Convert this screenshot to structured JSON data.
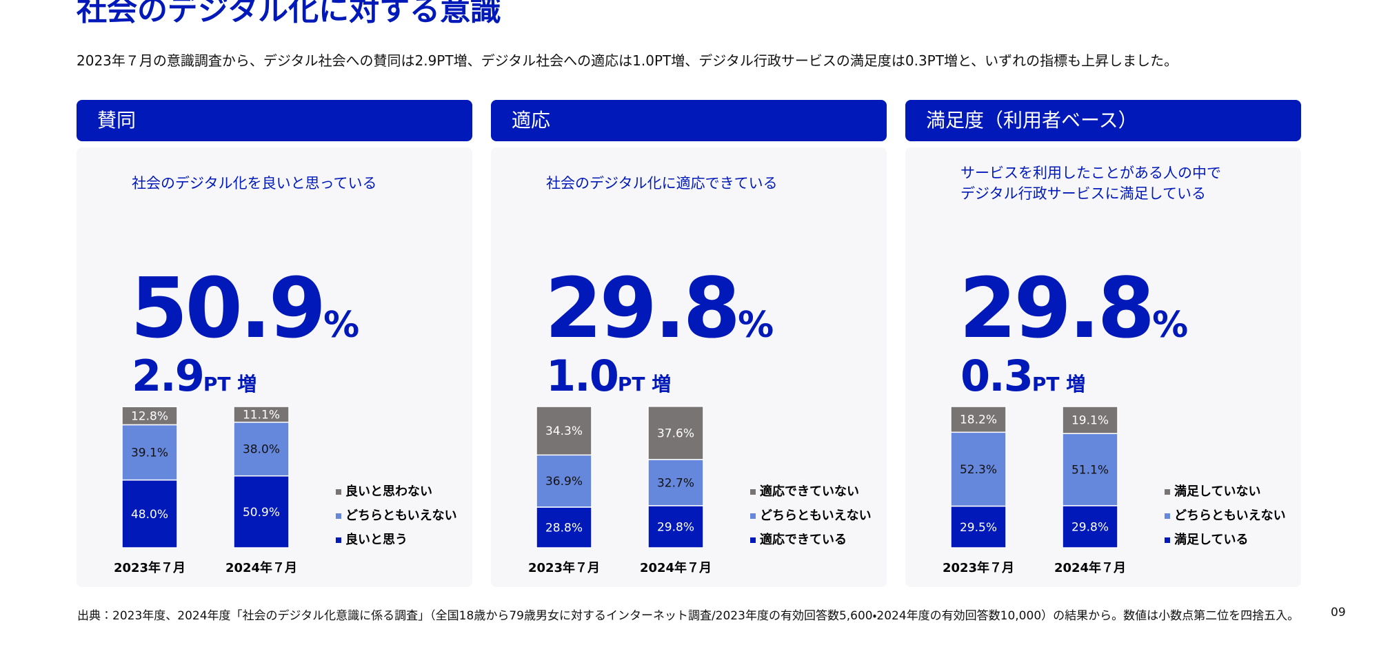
{
  "title": "社会のデジタル化に対する意識",
  "lead": "2023年７月の意識調査から、デジタル社会への賛同は2.9PT増、デジタル社会への適応は1.0PT増、デジタル行政サービスの満足度は0.3PT増と、いずれの指標も上昇しました。",
  "panels": [
    {
      "heading": "賛同",
      "description": [
        "社会のデジタル化を良いと思っている"
      ],
      "main_value": "50.9",
      "main_unit": "%",
      "change_value": "2.9",
      "change_unit": "PT 増"
    },
    {
      "heading": "適応",
      "description": [
        "社会のデジタル化に適応できている"
      ],
      "main_value": "29.8",
      "main_unit": "%",
      "change_value": "1.0",
      "change_unit": "PT 増"
    },
    {
      "heading": "満足度（利用者ベース）",
      "description": [
        "サービスを利用したことがある人の中で",
        "デジタル行政サービスに満足している"
      ],
      "main_value": "29.8",
      "main_unit": "%",
      "change_value": "0.3",
      "change_unit": "PT 増"
    }
  ],
  "chart_data": [
    {
      "type": "bar",
      "stacked": true,
      "categories": [
        "2023年７月",
        "2024年７月"
      ],
      "series": [
        {
          "name": "良いと思う",
          "color": "#0019b8",
          "values": [
            48.0,
            50.9
          ],
          "value_labels": [
            "48.0%",
            "50.9%"
          ]
        },
        {
          "name": "どちらともいえない",
          "color": "#6688dc",
          "values": [
            39.1,
            38.0
          ],
          "value_labels": [
            "39.1%",
            "38.0%"
          ]
        },
        {
          "name": "良いと思わない",
          "color": "#787474",
          "values": [
            12.8,
            11.1
          ],
          "value_labels": [
            "12.8%",
            "11.1%"
          ]
        }
      ]
    },
    {
      "type": "bar",
      "stacked": true,
      "categories": [
        "2023年７月",
        "2024年７月"
      ],
      "series": [
        {
          "name": "適応できている",
          "color": "#0019b8",
          "values": [
            28.8,
            29.8
          ],
          "value_labels": [
            "28.8%",
            "29.8%"
          ]
        },
        {
          "name": "どちらともいえない",
          "color": "#6688dc",
          "values": [
            36.9,
            32.7
          ],
          "value_labels": [
            "36.9%",
            "32.7%"
          ]
        },
        {
          "name": "適応できていない",
          "color": "#787474",
          "values": [
            34.3,
            37.6
          ],
          "value_labels": [
            "34.3%",
            "37.6%"
          ]
        }
      ]
    },
    {
      "type": "bar",
      "stacked": true,
      "categories": [
        "2023年７月",
        "2024年７月"
      ],
      "series": [
        {
          "name": "満足している",
          "color": "#0019b8",
          "values": [
            29.5,
            29.8
          ],
          "value_labels": [
            "29.5%",
            "29.8%"
          ]
        },
        {
          "name": "どちらともいえない",
          "color": "#6688dc",
          "values": [
            52.3,
            51.1
          ],
          "value_labels": [
            "52.3%",
            "51.1%"
          ]
        },
        {
          "name": "満足していない",
          "color": "#787474",
          "values": [
            18.2,
            19.1
          ],
          "value_labels": [
            "18.2%",
            "19.1%"
          ]
        }
      ]
    }
  ],
  "footer": "出典：2023年度、2024年度「社会のデジタル化意識に係る調査」（全国18歳から79歳男女に対するインターネット調査/2023年度の有効回答数5,600・2024年度の有効回答数10,000）の結果から。数値は小数点第二位を四捨五入。",
  "page_number": "09"
}
